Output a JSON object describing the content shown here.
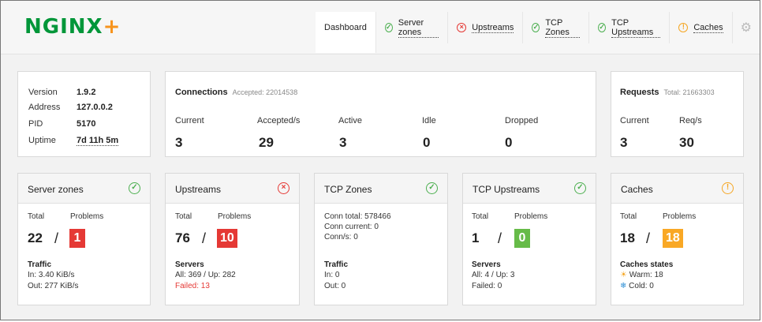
{
  "logo": {
    "text": "NGINX",
    "plus": "+"
  },
  "tabs": [
    {
      "label": "Dashboard",
      "status": "",
      "active": true
    },
    {
      "label": "Server zones",
      "status": "ok"
    },
    {
      "label": "Upstreams",
      "status": "error"
    },
    {
      "label": "TCP Zones",
      "status": "ok"
    },
    {
      "label": "TCP Upstreams",
      "status": "ok"
    },
    {
      "label": "Caches",
      "status": "warning"
    }
  ],
  "colors": {
    "ok": "#4caf50",
    "error": "#e53935",
    "warning": "#f5a623",
    "brand": "#009639"
  },
  "info": {
    "version_label": "Version",
    "version": "1.9.2",
    "address_label": "Address",
    "address": "127.0.0.2",
    "pid_label": "PID",
    "pid": "5170",
    "uptime_label": "Uptime",
    "uptime": "7d 11h 5m"
  },
  "connections": {
    "title": "Connections",
    "accepted_sub": "Accepted: 22014538",
    "headers": [
      "Current",
      "Accepted/s",
      "Active",
      "Idle",
      "Dropped"
    ],
    "values": [
      "3",
      "29",
      "3",
      "0",
      "0"
    ]
  },
  "requests": {
    "title": "Requests",
    "total_sub": "Total: 21663303",
    "headers": [
      "Current",
      "Req/s"
    ],
    "values": [
      "3",
      "30"
    ]
  },
  "server_zones": {
    "title": "Server zones",
    "total_label": "Total",
    "problems_label": "Problems",
    "total": "22",
    "problems": "1",
    "section": "Traffic",
    "line1": "In: 3.40 KiB/s",
    "line2": "Out: 277 KiB/s"
  },
  "upstreams": {
    "title": "Upstreams",
    "total_label": "Total",
    "problems_label": "Problems",
    "total": "76",
    "problems": "10",
    "section": "Servers",
    "line1": "All: 369 / Up: 282",
    "line2": "Failed: 13"
  },
  "tcp_zones": {
    "title": "TCP Zones",
    "line1": "Conn total: 578466",
    "line2": "Conn current: 0",
    "line3": "Conn/s: 0",
    "section": "Traffic",
    "traffic1": "In: 0",
    "traffic2": "Out: 0"
  },
  "tcp_upstreams": {
    "title": "TCP Upstreams",
    "total_label": "Total",
    "problems_label": "Problems",
    "total": "1",
    "problems": "0",
    "section": "Servers",
    "line1": "All: 4 / Up: 3",
    "line2": "Failed: 0"
  },
  "caches": {
    "title": "Caches",
    "total_label": "Total",
    "problems_label": "Problems",
    "total": "18",
    "problems": "18",
    "section": "Caches states",
    "line1": "Warm: 18",
    "line2": "Cold: 0"
  }
}
